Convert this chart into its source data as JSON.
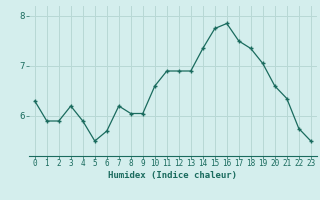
{
  "x": [
    0,
    1,
    2,
    3,
    4,
    5,
    6,
    7,
    8,
    9,
    10,
    11,
    12,
    13,
    14,
    15,
    16,
    17,
    18,
    19,
    20,
    21,
    22,
    23
  ],
  "y": [
    6.3,
    5.9,
    5.9,
    6.2,
    5.9,
    5.5,
    5.7,
    6.2,
    6.05,
    6.05,
    6.6,
    6.9,
    6.9,
    6.9,
    7.35,
    7.75,
    7.85,
    7.5,
    7.35,
    7.05,
    6.6,
    6.35,
    5.75,
    5.5
  ],
  "title": "",
  "xlabel": "Humidex (Indice chaleur)",
  "ylabel": "",
  "xlim": [
    -0.5,
    23.5
  ],
  "ylim": [
    5.2,
    8.2
  ],
  "yticks": [
    6,
    7,
    8
  ],
  "xticks": [
    0,
    1,
    2,
    3,
    4,
    5,
    6,
    7,
    8,
    9,
    10,
    11,
    12,
    13,
    14,
    15,
    16,
    17,
    18,
    19,
    20,
    21,
    22,
    23
  ],
  "line_color": "#1a6b5e",
  "marker": "+",
  "bg_color": "#d4eeed",
  "grid_color": "#b8d8d5",
  "label_color": "#1a6b5e"
}
